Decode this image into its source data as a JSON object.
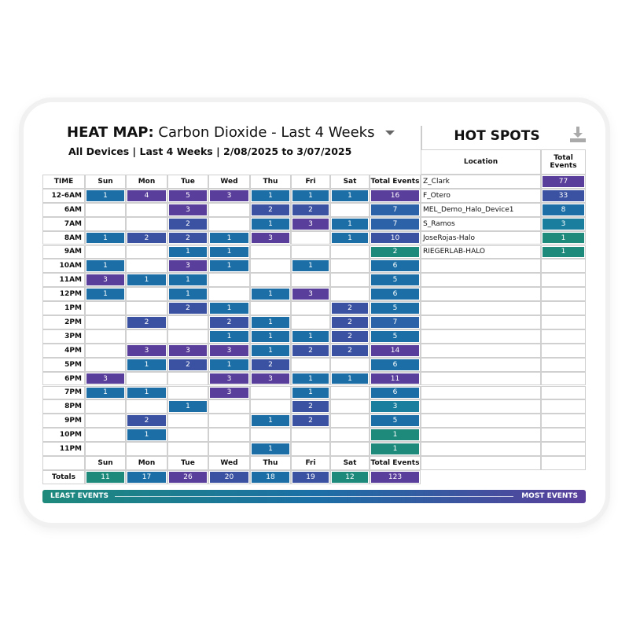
{
  "header": {
    "title_bold": "HEAT MAP:",
    "title_rest": " Carbon Dioxide - Last 4 Weeks",
    "subtitle": "All Devices | Last 4 Weeks | 2/08/2025 to 3/07/2025",
    "dropdown_icon": "caret-down-icon"
  },
  "hotspots": {
    "title": "HOT SPOTS",
    "download_icon": "download-icon",
    "col_location": "Location",
    "col_total": "Total Events",
    "rows": [
      {
        "location": "Z_Clark",
        "total": 77
      },
      {
        "location": "F_Otero",
        "total": 33
      },
      {
        "location": "MEL_Demo_Halo_Device1",
        "total": 8
      },
      {
        "location": "S_Ramos",
        "total": 3
      },
      {
        "location": "JoseRojas-Halo",
        "total": 1
      },
      {
        "location": "RIEGERLAB-HALO",
        "total": 1
      }
    ]
  },
  "table": {
    "columns": [
      "TIME",
      "Sun",
      "Mon",
      "Tue",
      "Wed",
      "Thu",
      "Fri",
      "Sat",
      "Total Events"
    ],
    "rows": [
      {
        "time": "12-6AM",
        "values": [
          1,
          4,
          5,
          3,
          1,
          1,
          1
        ],
        "total": 16
      },
      {
        "time": "6AM",
        "values": [
          null,
          null,
          3,
          null,
          2,
          2,
          null
        ],
        "total": 7
      },
      {
        "time": "7AM",
        "values": [
          null,
          null,
          2,
          null,
          1,
          3,
          1
        ],
        "total": 7
      },
      {
        "time": "8AM",
        "values": [
          1,
          2,
          2,
          1,
          3,
          null,
          1
        ],
        "total": 10
      },
      {
        "time": "9AM",
        "values": [
          null,
          null,
          1,
          1,
          null,
          null,
          null
        ],
        "total": 2
      },
      {
        "time": "10AM",
        "values": [
          1,
          null,
          3,
          1,
          null,
          1,
          null
        ],
        "total": 6
      },
      {
        "time": "11AM",
        "values": [
          3,
          1,
          1,
          null,
          null,
          null,
          null
        ],
        "total": 5
      },
      {
        "time": "12PM",
        "values": [
          1,
          null,
          1,
          null,
          1,
          3,
          null
        ],
        "total": 6
      },
      {
        "time": "1PM",
        "values": [
          null,
          null,
          2,
          1,
          null,
          null,
          2
        ],
        "total": 5
      },
      {
        "time": "2PM",
        "values": [
          null,
          2,
          null,
          2,
          1,
          null,
          2
        ],
        "total": 7
      },
      {
        "time": "3PM",
        "values": [
          null,
          null,
          null,
          1,
          1,
          1,
          2
        ],
        "total": 5
      },
      {
        "time": "4PM",
        "values": [
          null,
          3,
          3,
          3,
          1,
          2,
          2
        ],
        "total": 14
      },
      {
        "time": "5PM",
        "values": [
          null,
          1,
          2,
          1,
          2,
          null,
          null
        ],
        "total": 6
      },
      {
        "time": "6PM",
        "values": [
          3,
          null,
          null,
          3,
          3,
          1,
          1
        ],
        "total": 11
      },
      {
        "time": "7PM",
        "values": [
          1,
          1,
          null,
          3,
          null,
          1,
          null
        ],
        "total": 6
      },
      {
        "time": "8PM",
        "values": [
          null,
          null,
          1,
          null,
          null,
          2,
          null
        ],
        "total": 3
      },
      {
        "time": "9PM",
        "values": [
          null,
          2,
          null,
          null,
          1,
          2,
          null
        ],
        "total": 5
      },
      {
        "time": "10PM",
        "values": [
          null,
          1,
          null,
          null,
          null,
          null,
          null
        ],
        "total": 1
      },
      {
        "time": "11PM",
        "values": [
          null,
          null,
          null,
          null,
          1,
          null,
          null
        ],
        "total": 1
      }
    ],
    "footer_columns": [
      "",
      "Sun",
      "Mon",
      "Tue",
      "Wed",
      "Thu",
      "Fri",
      "Sat",
      "Total Events"
    ],
    "totals_label": "Totals",
    "totals": [
      11,
      17,
      26,
      20,
      18,
      19,
      12,
      123
    ]
  },
  "legend": {
    "least": "LEAST EVENTS",
    "most": "MOST EVENTS"
  },
  "colors": {
    "teal": "#1e8a7c",
    "teal_blue": "#1a7f9e",
    "blue": "#1b6fa6",
    "blue_indigo": "#2b62a8",
    "indigo": "#3b52a2",
    "purple": "#5a3e9b"
  }
}
